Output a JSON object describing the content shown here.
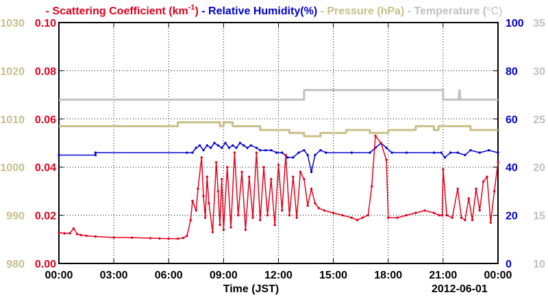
{
  "chart_data": {
    "type": "line",
    "legend": [
      {
        "prefix": "- ",
        "name": "Scattering Coefficient (km",
        "sup": "-1",
        "suffix": ")",
        "color": "#e0001b"
      },
      {
        "prefix": " - ",
        "name": "Relative Humidity(%)",
        "sup": "",
        "suffix": "",
        "color": "#0000cc"
      },
      {
        "prefix": " - ",
        "name": "Pressure (hPa)",
        "sup": "",
        "suffix": "",
        "color": "#c8bf86"
      },
      {
        "prefix": " - ",
        "name": "Temperature (",
        "sup": "",
        "suffix": "C)",
        "color": "#c0c0c0"
      }
    ],
    "xlabel": "Time (JST)",
    "date_label": "2012-06-01",
    "x_ticks": [
      "00:00",
      "03:00",
      "06:00",
      "09:00",
      "12:00",
      "15:00",
      "18:00",
      "21:00",
      "00:00"
    ],
    "xlim": [
      0,
      24
    ],
    "grid": true,
    "axes": {
      "pressure": {
        "side": "left-outer",
        "color": "#c8bf86",
        "ylim": [
          980,
          1030
        ],
        "ticks": [
          "980",
          "990",
          "1000",
          "1010",
          "1020",
          "1030"
        ]
      },
      "scattering": {
        "side": "left-inner",
        "color": "#e0001b",
        "ylim": [
          0,
          0.1
        ],
        "ticks": [
          "0.00",
          "0.02",
          "0.04",
          "0.06",
          "0.08",
          "0.10"
        ]
      },
      "humidity": {
        "side": "right-inner",
        "color": "#0000cc",
        "ylim": [
          0,
          100
        ],
        "ticks": [
          "0",
          "20",
          "40",
          "60",
          "80",
          "100"
        ]
      },
      "temperature": {
        "side": "right-outer",
        "color": "#c0c0c0",
        "ylim": [
          10,
          35
        ],
        "ticks": [
          "10",
          "15",
          "20",
          "25",
          "30",
          "35"
        ]
      }
    },
    "series": [
      {
        "name": "Temperature",
        "axis": "temperature",
        "color": "#c0c0c0",
        "markers": false,
        "x": [
          0,
          13.4,
          13.4,
          21.0,
          21.0,
          21.85,
          21.9,
          21.95,
          24
        ],
        "y": [
          27.0,
          27.0,
          28.0,
          28.0,
          27.0,
          27.0,
          28.0,
          27.0,
          27.0
        ]
      },
      {
        "name": "Pressure",
        "axis": "pressure",
        "color": "#c8bf86",
        "markers": false,
        "x": [
          0,
          6.5,
          6.5,
          8.8,
          8.8,
          9.0,
          9.0,
          9.5,
          9.5,
          11.0,
          11.0,
          12.6,
          12.6,
          13.4,
          13.4,
          14.3,
          14.3,
          15.7,
          15.7,
          17.0,
          17.0,
          18.0,
          18.0,
          19.5,
          19.5,
          20.5,
          20.5,
          20.75,
          20.75,
          21.0,
          21.0,
          21.5,
          21.5,
          22.5,
          22.5,
          24
        ],
        "y": [
          1008.5,
          1008.5,
          1009.3,
          1009.3,
          1008.5,
          1008.5,
          1009.3,
          1009.3,
          1008.5,
          1008.5,
          1007.7,
          1007.7,
          1007.1,
          1007.1,
          1006.4,
          1006.4,
          1007.1,
          1007.1,
          1007.7,
          1007.7,
          1007.1,
          1007.1,
          1007.7,
          1007.7,
          1008.5,
          1008.5,
          1007.7,
          1007.7,
          1008.5,
          1008.5,
          1008.5,
          1008.5,
          1008.5,
          1008.5,
          1007.7,
          1007.7
        ]
      },
      {
        "name": "Relative Humidity",
        "axis": "humidity",
        "color": "#0000cc",
        "markers": true,
        "x": [
          0,
          2.0,
          2.0,
          7.0,
          7.3,
          7.5,
          7.7,
          7.9,
          8.1,
          8.3,
          8.5,
          8.7,
          8.9,
          9.1,
          9.3,
          9.5,
          9.7,
          9.9,
          10.1,
          10.3,
          10.5,
          10.8,
          11.0,
          11.3,
          11.6,
          11.9,
          12.2,
          12.5,
          12.8,
          13.1,
          13.4,
          13.6,
          13.8,
          14.0,
          14.3,
          14.6,
          16.0,
          17.0,
          17.3,
          17.6,
          17.9,
          18.2,
          19.0,
          20.5,
          20.9,
          21.1,
          21.4,
          21.8,
          22.2,
          22.5,
          23.0,
          23.5,
          24
        ],
        "y": [
          45,
          45,
          46,
          46,
          46,
          48,
          49,
          47,
          49,
          48,
          50,
          49,
          48,
          50,
          48,
          49,
          48,
          50,
          49,
          48,
          49,
          48,
          47,
          47,
          47,
          46,
          46,
          44,
          44,
          46,
          47,
          45,
          38,
          45,
          47,
          46,
          46,
          46,
          48,
          50,
          48,
          46,
          46,
          46,
          46,
          44,
          46,
          46,
          45,
          47,
          46,
          47,
          46
        ]
      },
      {
        "name": "Scattering Coefficient",
        "axis": "scattering",
        "color": "#e0001b",
        "markers": true,
        "x": [
          0,
          0.3,
          0.6,
          0.8,
          1.0,
          1.2,
          1.5,
          2.0,
          3.0,
          4.0,
          5.0,
          5.5,
          6.0,
          6.5,
          6.8,
          7.0,
          7.2,
          7.3,
          7.5,
          7.6,
          7.8,
          7.9,
          8.0,
          8.1,
          8.2,
          8.4,
          8.6,
          8.7,
          8.8,
          8.9,
          9.0,
          9.2,
          9.4,
          9.6,
          9.8,
          10.0,
          10.2,
          10.4,
          10.6,
          10.8,
          11.0,
          11.2,
          11.4,
          11.6,
          11.8,
          12.0,
          12.2,
          12.4,
          12.6,
          12.8,
          13.0,
          13.2,
          13.4,
          13.6,
          13.8,
          14.0,
          14.2,
          14.5,
          15.0,
          15.5,
          16.0,
          16.3,
          16.6,
          16.9,
          17.1,
          17.3,
          17.6,
          17.9,
          18.0,
          18.5,
          19.0,
          19.5,
          20.0,
          20.5,
          20.8,
          20.95,
          21.0,
          21.2,
          21.5,
          21.8,
          22.0,
          22.2,
          22.4,
          22.6,
          22.8,
          23.0,
          23.2,
          23.4,
          23.6,
          23.8,
          24.0
        ],
        "y": [
          0.0128,
          0.0125,
          0.0125,
          0.0145,
          0.0122,
          0.0118,
          0.0115,
          0.0112,
          0.0108,
          0.0107,
          0.0105,
          0.0104,
          0.0103,
          0.0103,
          0.0106,
          0.0115,
          0.018,
          0.026,
          0.022,
          0.031,
          0.044,
          0.028,
          0.019,
          0.036,
          0.025,
          0.013,
          0.042,
          0.03,
          0.016,
          0.035,
          0.014,
          0.04,
          0.015,
          0.046,
          0.02,
          0.038,
          0.014,
          0.036,
          0.019,
          0.046,
          0.018,
          0.04,
          0.02,
          0.035,
          0.016,
          0.041,
          0.022,
          0.045,
          0.02,
          0.036,
          0.019,
          0.038,
          0.035,
          0.024,
          0.031,
          0.025,
          0.023,
          0.022,
          0.021,
          0.02,
          0.019,
          0.018,
          0.019,
          0.02,
          0.032,
          0.053,
          0.05,
          0.043,
          0.019,
          0.019,
          0.02,
          0.021,
          0.022,
          0.021,
          0.02,
          0.02,
          0.039,
          0.02,
          0.019,
          0.031,
          0.019,
          0.018,
          0.027,
          0.018,
          0.031,
          0.022,
          0.034,
          0.036,
          0.017,
          0.03,
          0.042
        ]
      }
    ]
  }
}
